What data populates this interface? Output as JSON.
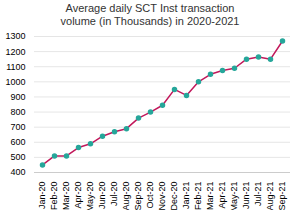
{
  "chart_data": {
    "type": "line",
    "title": "Average daily SCT Inst transaction\nvolume (in Thousands) in 2020-2021",
    "categories": [
      "Jan-20",
      "Feb-20",
      "Mar-20",
      "Apr-20",
      "May-20",
      "Jun-20",
      "Jul-20",
      "Aug-20",
      "Sep-20",
      "Oct-20",
      "Nov-20",
      "Dec-20",
      "Jan-21",
      "Feb-21",
      "Mar-21",
      "Apr-21",
      "May-21",
      "Jun-21",
      "Jul-21",
      "Aug-21",
      "Sep-21"
    ],
    "values": [
      450,
      510,
      510,
      565,
      590,
      640,
      670,
      690,
      760,
      800,
      845,
      950,
      910,
      1000,
      1050,
      1075,
      1090,
      1150,
      1165,
      1150,
      1270
    ],
    "color": "#C2185B",
    "marker": "o",
    "colors": [
      "#26A69A",
      "#26A69A",
      "#26A69A",
      "#26A69A",
      "#26A69A",
      "#26A69A",
      "#26A69A",
      "#26A69A",
      "#26A69A",
      "#26A69A",
      "#26A69A",
      "#26A69A",
      "#26A69A",
      "#26A69A",
      "#26A69A",
      "#26A69A",
      "#26A69A",
      "#26A69A",
      "#26A69A",
      "#26A69A",
      "#26A69A"
    ],
    "ylim": [
      400,
      1300
    ],
    "yticks": [
      400,
      500,
      600,
      700,
      800,
      900,
      1000,
      1100,
      1200,
      1300
    ],
    "grid": true
  }
}
